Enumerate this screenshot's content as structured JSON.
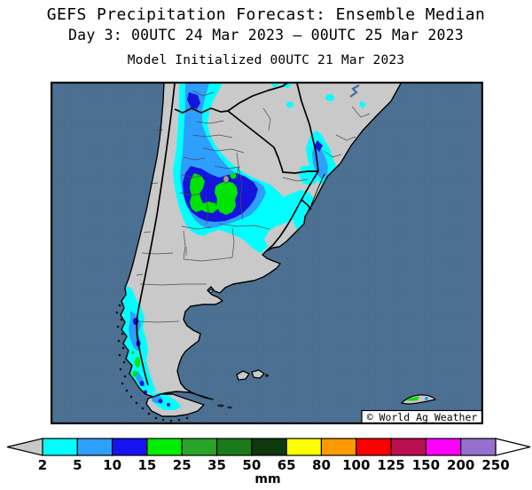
{
  "header": {
    "title": "GEFS Precipitation Forecast: Ensemble Median",
    "subtitle": "Day 3: 00UTC 24 Mar 2023 – 00UTC 25 Mar 2023",
    "init_line": "Model Initialized 00UTC 21 Mar 2023"
  },
  "map": {
    "attribution": "© World Ag Weather",
    "colors": {
      "ocean": "#4C7092",
      "ocean_stipple": "#44688C",
      "land": "#C9C9C9",
      "coast_border": "#000000",
      "province_border": "#4D4D4D",
      "river": "#3C6CA6",
      "lake": "#9E9E9E",
      "precip_2_5": "#00FFFF",
      "precip_5_10": "#2E9EFF",
      "precip_10_15": "#1414DC",
      "precip_15_25": "#00E400"
    }
  },
  "colorbar": {
    "units": "mm",
    "tick_labels": [
      "2",
      "5",
      "10",
      "15",
      "25",
      "35",
      "50",
      "65",
      "80",
      "100",
      "125",
      "150",
      "200",
      "250"
    ],
    "cell_colors": [
      "#00FFFF",
      "#2E9EFF",
      "#1414F0",
      "#00EE00",
      "#28A428",
      "#1B7B1B",
      "#0D390D",
      "#FFFF00",
      "#FF9900",
      "#FF0000",
      "#BA0E50",
      "#FF00FF",
      "#9570CE"
    ],
    "left_arrow_color": "#C9C9C9",
    "right_arrow_color": "#FFFFFF"
  }
}
